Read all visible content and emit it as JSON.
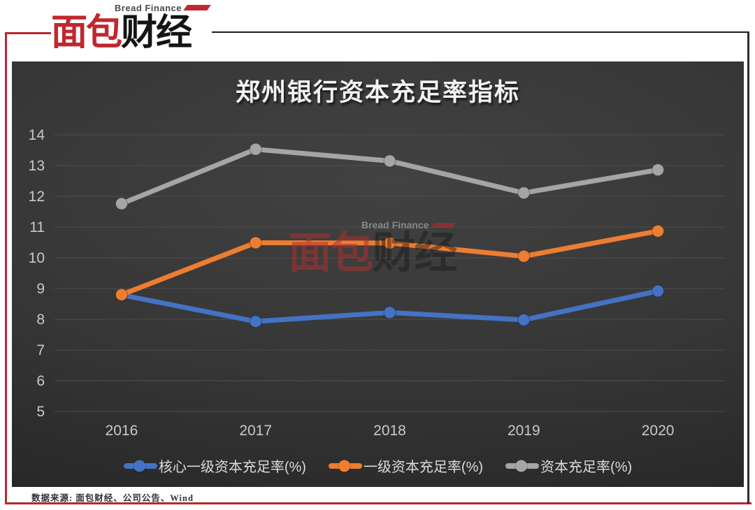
{
  "logo": {
    "subtitle": "Bread Finance",
    "wordmark_red": "面包",
    "wordmark_dark": "财经"
  },
  "watermark": {
    "subtitle": "Bread Finance",
    "wordmark_red": "面包",
    "wordmark_dark": "财经"
  },
  "footer": {
    "source": "数据来源: 面包财经、公司公告、Wind"
  },
  "colors": {
    "frame_red": "#b9282e",
    "frame_dark": "#1d1d1d",
    "chart_bg": "#333333",
    "title_text": "#f2f2f2",
    "tick_text": "#c9c9c9",
    "grid_line": "#4e4e4e",
    "legend_text": "#dcdcdc"
  },
  "chart_data": {
    "type": "line",
    "title": "郑州银行资本充足率指标",
    "categories": [
      "2016",
      "2017",
      "2018",
      "2019",
      "2020"
    ],
    "series": [
      {
        "name": "核心一级资本充足率(%)",
        "color": "#4472C4",
        "values": [
          8.79,
          7.93,
          8.22,
          7.98,
          8.92
        ]
      },
      {
        "name": "一级资本充足率(%)",
        "color": "#ED7D31",
        "values": [
          8.8,
          10.49,
          10.48,
          10.05,
          10.87
        ]
      },
      {
        "name": "资本充足率(%)",
        "color": "#A5A5A5",
        "values": [
          11.76,
          13.53,
          13.15,
          12.11,
          12.86
        ]
      }
    ],
    "xlabel": "",
    "ylabel": "",
    "ylim": [
      5,
      14
    ],
    "ytick_step": 1,
    "grid": true,
    "legend_position": "bottom"
  }
}
